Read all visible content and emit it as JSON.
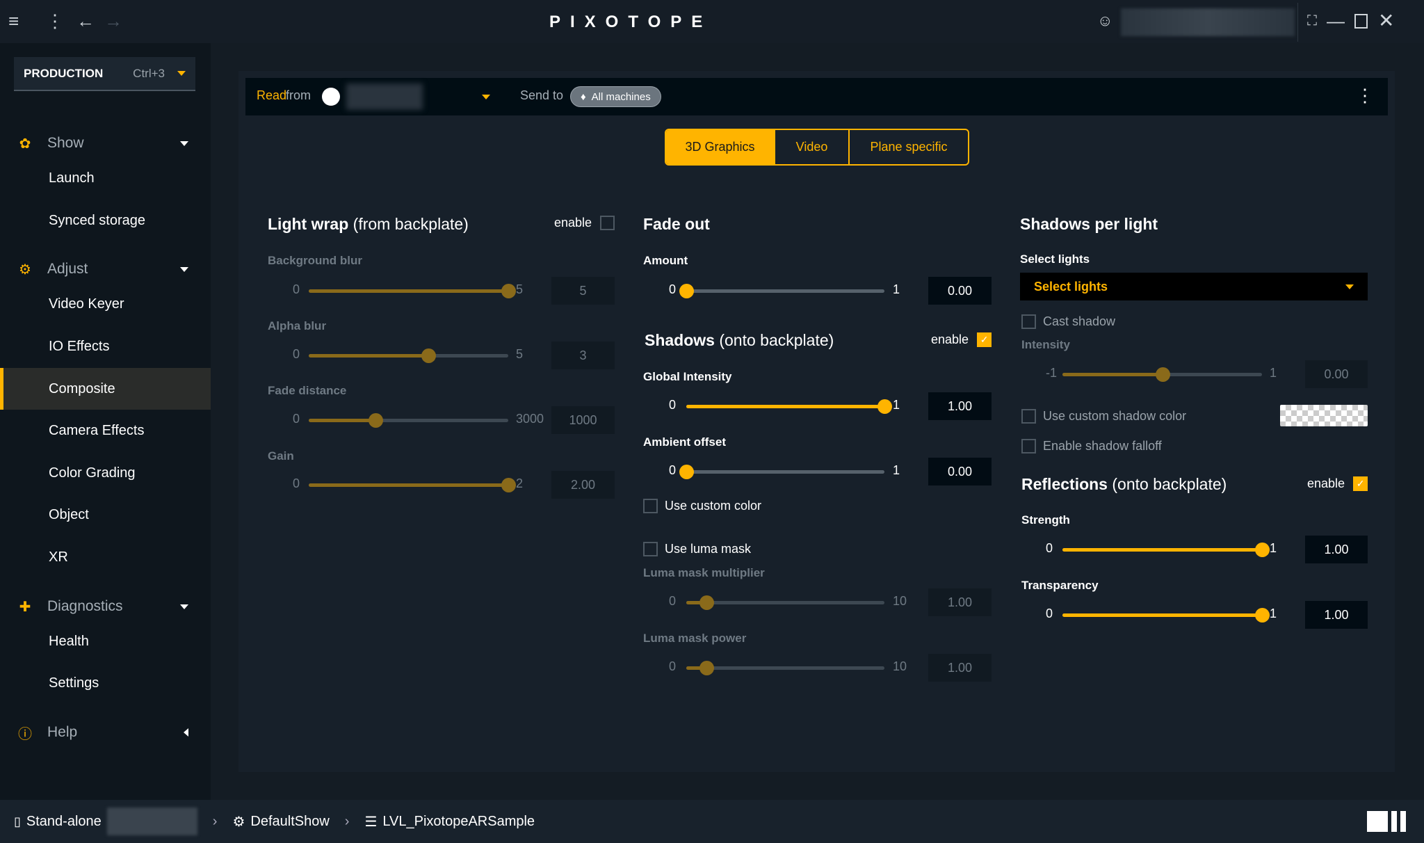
{
  "topbar": {
    "app_name": "PIXOTOPE",
    "icons": [
      "collapse-sidebar-icon",
      "more-vertical-icon",
      "back-arrow-icon",
      "forward-arrow-icon",
      "user-icon",
      "fullscreen-icon",
      "minimize-icon",
      "maximize-icon",
      "close-icon"
    ]
  },
  "sidebar": {
    "mode": {
      "label": "PRODUCTION",
      "shortcut": "Ctrl+3"
    },
    "sections": [
      {
        "label": "Show",
        "icon": "show-icon",
        "expanded": true,
        "items": [
          "Launch",
          "Synced storage"
        ]
      },
      {
        "label": "Adjust",
        "icon": "sliders-icon",
        "expanded": true,
        "items": [
          "Video Keyer",
          "IO Effects",
          "Composite",
          "Camera Effects",
          "Color Grading",
          "Object",
          "XR"
        ]
      },
      {
        "label": "Diagnostics",
        "icon": "diagnostics-icon",
        "expanded": true,
        "items": [
          "Health",
          "Settings"
        ]
      },
      {
        "label": "Help",
        "icon": "help-icon",
        "expanded": false,
        "items": []
      }
    ],
    "active_item": "Composite"
  },
  "readbar": {
    "read_label_a": "Read",
    "read_label_b": "from",
    "send_label": "Send to",
    "send_tag": "All machines"
  },
  "tabs": [
    {
      "label": "3D Graphics",
      "active": true
    },
    {
      "label": "Video",
      "active": false
    },
    {
      "label": "Plane specific",
      "active": false
    }
  ],
  "light_wrap": {
    "title": "Light wrap",
    "subtitle": "(from backplate)",
    "enable_label": "enable",
    "enabled": false,
    "sliders": [
      {
        "label": "Background blur",
        "min": 0,
        "max": 5,
        "value": 5,
        "display": "5",
        "min_label": "0",
        "max_label": "5",
        "disabled": true
      },
      {
        "label": "Alpha blur",
        "min": 0,
        "max": 5,
        "value": 3,
        "display": "3",
        "min_label": "0",
        "max_label": "5",
        "disabled": true
      },
      {
        "label": "Fade distance",
        "min": 0,
        "max": 3000,
        "value": 1000,
        "display": "1000",
        "min_label": "0",
        "max_label": "3000",
        "disabled": true
      },
      {
        "label": "Gain",
        "min": 0,
        "max": 2,
        "value": 2,
        "display": "2.00",
        "min_label": "0",
        "max_label": "2",
        "disabled": true
      }
    ]
  },
  "fade_out": {
    "title": "Fade out",
    "sliders": [
      {
        "label": "Amount",
        "min": 0,
        "max": 1,
        "value": 0,
        "display": "0.00",
        "min_label": "0",
        "max_label": "1",
        "disabled": false
      }
    ]
  },
  "shadows": {
    "title": "Shadows",
    "subtitle": "(onto backplate)",
    "enable_label": "enable",
    "enabled": true,
    "sliders": [
      {
        "label": "Global Intensity",
        "min": 0,
        "max": 1,
        "value": 1,
        "display": "1.00",
        "min_label": "0",
        "max_label": "1",
        "disabled": false
      },
      {
        "label": "Ambient offset",
        "min": 0,
        "max": 1,
        "value": 0,
        "display": "0.00",
        "min_label": "0",
        "max_label": "1",
        "disabled": false
      }
    ],
    "use_custom_color": {
      "label": "Use custom color",
      "checked": false
    },
    "use_luma_mask": {
      "label": "Use luma mask",
      "checked": false
    },
    "luma_sliders": [
      {
        "label": "Luma mask multiplier",
        "min": 0,
        "max": 10,
        "value": 1,
        "display": "1.00",
        "min_label": "0",
        "max_label": "10",
        "disabled": true
      },
      {
        "label": "Luma mask power",
        "min": 0,
        "max": 10,
        "value": 1,
        "display": "1.00",
        "min_label": "0",
        "max_label": "10",
        "disabled": true
      }
    ]
  },
  "shadows_per_light": {
    "title": "Shadows per light",
    "select_label": "Select lights",
    "select_placeholder": "Select lights",
    "cast_shadow": {
      "label": "Cast shadow",
      "checked": false
    },
    "sliders": [
      {
        "label": "Intensity",
        "min": -1,
        "max": 1,
        "value": 0,
        "display": "0.00",
        "min_label": "-1",
        "max_label": "1",
        "disabled": true
      }
    ],
    "custom_shadow_color": {
      "label": "Use custom shadow color",
      "checked": false
    },
    "shadow_falloff": {
      "label": "Enable shadow falloff",
      "checked": false
    }
  },
  "reflections": {
    "title": "Reflections",
    "subtitle": "(onto backplate)",
    "enable_label": "enable",
    "enabled": true,
    "sliders": [
      {
        "label": "Strength",
        "min": 0,
        "max": 1,
        "value": 1,
        "display": "1.00",
        "min_label": "0",
        "max_label": "1",
        "disabled": false
      },
      {
        "label": "Transparency",
        "min": 0,
        "max": 1,
        "value": 1,
        "display": "1.00",
        "min_label": "0",
        "max_label": "1",
        "disabled": false
      }
    ]
  },
  "statusbar": {
    "machine": "Stand-alone",
    "show": "DefaultShow",
    "level": "LVL_PixotopeARSample"
  },
  "colors": {
    "accent": "#ffb400",
    "background": "#17202a",
    "sidebar": "#0e161d"
  }
}
